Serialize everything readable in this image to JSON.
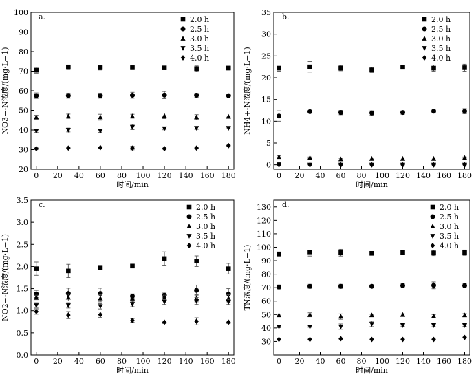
{
  "legend_labels": [
    "2.0 h",
    "2.5 h",
    "3.0 h",
    "3.5 h",
    "4.0 h"
  ],
  "chart_data": [
    {
      "panel": "a.",
      "type": "scatter",
      "xlabel": "时间/min",
      "ylabel": "NO3−-N浓度/(mg·L−1)",
      "xlim": [
        -5,
        185
      ],
      "ylim": [
        20,
        100
      ],
      "xticks": [
        0,
        20,
        40,
        60,
        80,
        100,
        120,
        140,
        160,
        180
      ],
      "yticks": [
        20,
        30,
        40,
        50,
        60,
        70,
        80,
        90,
        100
      ],
      "x": [
        0,
        30,
        60,
        90,
        120,
        150,
        180
      ],
      "series": [
        {
          "name": "2.0 h",
          "marker": "square",
          "values": [
            70.5,
            72.0,
            71.8,
            71.8,
            71.7,
            71.3,
            71.6
          ],
          "errors": [
            1.5,
            1.2,
            1.2,
            1.0,
            0.4,
            1.4,
            1.0
          ]
        },
        {
          "name": "2.5 h",
          "marker": "circle",
          "values": [
            57.5,
            57.5,
            57.5,
            57.7,
            57.8,
            57.7,
            57.5
          ],
          "errors": [
            1.4,
            1.3,
            1.3,
            1.5,
            1.8,
            1.0,
            0.3
          ]
        },
        {
          "name": "3.0 h",
          "marker": "triangle-up",
          "values": [
            46.5,
            47.0,
            46.5,
            47.0,
            47.2,
            46.5,
            46.8
          ],
          "errors": [
            1.0,
            1.1,
            1.5,
            1.0,
            1.4,
            1.3,
            0.3
          ]
        },
        {
          "name": "3.5 h",
          "marker": "triangle-down",
          "values": [
            39.5,
            40.0,
            39.5,
            41.5,
            40.8,
            41.0,
            41.0
          ],
          "errors": [
            0.8,
            1.0,
            0.7,
            1.3,
            0.7,
            0.7,
            0.3
          ]
        },
        {
          "name": "4.0 h",
          "marker": "diamond",
          "values": [
            30.5,
            30.8,
            31.0,
            30.8,
            30.5,
            30.8,
            32.0
          ],
          "errors": [
            0.4,
            0.3,
            0.3,
            0.9,
            0.3,
            0.3,
            0.3
          ]
        }
      ]
    },
    {
      "panel": "b.",
      "type": "scatter",
      "xlabel": "时间/min",
      "ylabel": "NH4+-N浓度/(mg·L−1)",
      "xlim": [
        -5,
        185
      ],
      "ylim": [
        -1,
        35
      ],
      "xticks": [
        0,
        20,
        40,
        60,
        80,
        100,
        120,
        140,
        160,
        180
      ],
      "yticks": [
        0,
        5,
        10,
        15,
        20,
        25,
        30,
        35
      ],
      "x": [
        0,
        30,
        60,
        90,
        120,
        150,
        180
      ],
      "series": [
        {
          "name": "2.0 h",
          "marker": "square",
          "values": [
            22.2,
            22.5,
            22.2,
            21.8,
            22.4,
            22.2,
            22.3
          ],
          "errors": [
            0.7,
            1.2,
            0.6,
            0.6,
            0.3,
            0.7,
            0.8
          ]
        },
        {
          "name": "2.5 h",
          "marker": "circle",
          "values": [
            11.2,
            12.2,
            12.0,
            11.9,
            12.0,
            12.3,
            12.3
          ],
          "errors": [
            1.2,
            0.3,
            0.5,
            0.5,
            0.4,
            0.3,
            0.6
          ]
        },
        {
          "name": "3.0 h",
          "marker": "triangle-up",
          "values": [
            1.8,
            1.6,
            1.3,
            1.4,
            1.4,
            1.4,
            1.6
          ],
          "errors": [
            0.3,
            0.2,
            0.2,
            0.2,
            0.2,
            0.2,
            0.2
          ]
        },
        {
          "name": "3.5 h",
          "marker": "triangle-down",
          "values": [
            0.1,
            0.0,
            0.0,
            0.0,
            0.0,
            0.0,
            0.0
          ],
          "errors": [
            0,
            0,
            0,
            0,
            0,
            0,
            0
          ]
        },
        {
          "name": "4.0 h",
          "marker": "diamond",
          "values": [
            0.0,
            0.0,
            0.0,
            0.0,
            0.0,
            0.0,
            0.0
          ],
          "errors": [
            0,
            0,
            0,
            0,
            0,
            0,
            0
          ]
        }
      ]
    },
    {
      "panel": "c.",
      "type": "scatter",
      "xlabel": "时间/min",
      "ylabel": "NO2−-N浓度/(mg·L−1)",
      "xlim": [
        -5,
        185
      ],
      "ylim": [
        0,
        3.5
      ],
      "xticks": [
        0,
        20,
        40,
        60,
        80,
        100,
        120,
        140,
        160,
        180
      ],
      "yticks": [
        0.0,
        0.5,
        1.0,
        1.5,
        2.0,
        2.5,
        3.0,
        3.5
      ],
      "x": [
        0,
        30,
        60,
        90,
        120,
        150,
        180
      ],
      "series": [
        {
          "name": "2.0 h",
          "marker": "square",
          "values": [
            1.95,
            1.9,
            1.98,
            2.01,
            2.18,
            2.12,
            1.95
          ],
          "errors": [
            0.15,
            0.15,
            0.02,
            0.02,
            0.15,
            0.12,
            0.12
          ]
        },
        {
          "name": "2.5 h",
          "marker": "circle",
          "values": [
            1.38,
            1.39,
            1.39,
            1.33,
            1.35,
            1.46,
            1.38
          ],
          "errors": [
            0.08,
            0.12,
            0.12,
            0.05,
            0.05,
            0.12,
            0.12
          ]
        },
        {
          "name": "3.0 h",
          "marker": "triangle-up",
          "values": [
            1.3,
            1.3,
            1.28,
            1.28,
            1.3,
            1.28,
            1.28
          ],
          "errors": [
            0.05,
            0.08,
            0.08,
            0.05,
            0.05,
            0.08,
            0.08
          ]
        },
        {
          "name": "3.5 h",
          "marker": "triangle-down",
          "values": [
            1.12,
            1.12,
            1.1,
            1.15,
            1.2,
            1.22,
            1.2
          ],
          "errors": [
            0.06,
            0.06,
            0.06,
            0.06,
            0.06,
            0.08,
            0.06
          ]
        },
        {
          "name": "4.0 h",
          "marker": "diamond",
          "values": [
            0.98,
            0.9,
            0.91,
            0.78,
            0.74,
            0.76,
            0.74
          ],
          "errors": [
            0.06,
            0.08,
            0.06,
            0.04,
            0.03,
            0.08,
            0.03
          ]
        }
      ]
    },
    {
      "panel": "d.",
      "type": "scatter",
      "xlabel": "时间/min",
      "ylabel": "TN浓度/(mg·L−1)",
      "xlim": [
        -5,
        185
      ],
      "ylim": [
        20,
        135
      ],
      "xticks": [
        0,
        20,
        40,
        60,
        80,
        100,
        120,
        140,
        160,
        180
      ],
      "yticks": [
        30,
        40,
        50,
        60,
        70,
        80,
        90,
        100,
        110,
        120,
        130
      ],
      "x": [
        0,
        30,
        60,
        90,
        120,
        150,
        180
      ],
      "series": [
        {
          "name": "2.0 h",
          "marker": "square",
          "values": [
            95.0,
            96.5,
            96.0,
            95.5,
            96.3,
            95.8,
            96.0
          ],
          "errors": [
            1.5,
            3.0,
            2.5,
            0.5,
            1.5,
            2.0,
            2.0
          ]
        },
        {
          "name": "2.5 h",
          "marker": "circle",
          "values": [
            70.5,
            71.0,
            71.0,
            71.0,
            71.5,
            71.7,
            71.5
          ],
          "errors": [
            1.5,
            1.5,
            1.5,
            1.0,
            1.5,
            2.5,
            1.5
          ]
        },
        {
          "name": "3.0 h",
          "marker": "triangle-up",
          "values": [
            49.5,
            49.8,
            48.5,
            49.5,
            49.8,
            48.8,
            49.5
          ],
          "errors": [
            0.8,
            1.5,
            2.0,
            0.7,
            0.7,
            1.2,
            1.2
          ]
        },
        {
          "name": "3.5 h",
          "marker": "triangle-down",
          "values": [
            41.0,
            41.0,
            41.0,
            43.0,
            42.0,
            42.0,
            42.0
          ],
          "errors": [
            0.8,
            0.5,
            2.0,
            2.0,
            0.7,
            1.0,
            0.8
          ]
        },
        {
          "name": "4.0 h",
          "marker": "diamond",
          "values": [
            31.5,
            31.5,
            32.0,
            31.5,
            31.5,
            31.5,
            33.0
          ],
          "errors": [
            0.3,
            0.3,
            0.3,
            0.3,
            0.3,
            0.3,
            0.3
          ]
        }
      ]
    }
  ]
}
